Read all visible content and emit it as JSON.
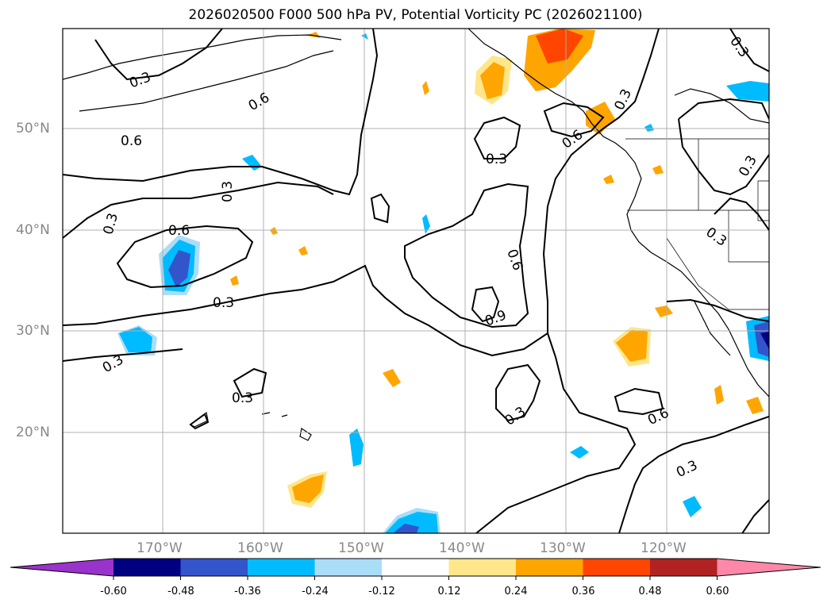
{
  "title": "2026020500 F000 500 hPa PV, Potential Vorticity PC (2026021100)",
  "lon_ticks": [
    "170°W",
    "160°W",
    "150°W",
    "140°W",
    "130°W",
    "120°W"
  ],
  "lat_ticks": [
    "50°N",
    "40°N",
    "30°N",
    "20°N"
  ],
  "contour_labels": [
    "0.3",
    "0.6",
    "0.9"
  ],
  "colorbar": {
    "levels": [
      "-0.60",
      "-0.48",
      "-0.36",
      "-0.24",
      "-0.12",
      "0.12",
      "0.24",
      "0.36",
      "0.48",
      "0.60"
    ],
    "colors": [
      "#9933cc",
      "#000080",
      "#3355cc",
      "#00bbff",
      "#aaddf7",
      "#ffffff",
      "#ffe68a",
      "#ffa500",
      "#ff4500",
      "#b22222",
      "#ff88aa"
    ]
  },
  "colors": {
    "coast": "#000000",
    "grid": "#b0b0b0",
    "axis_text": "#888888"
  }
}
